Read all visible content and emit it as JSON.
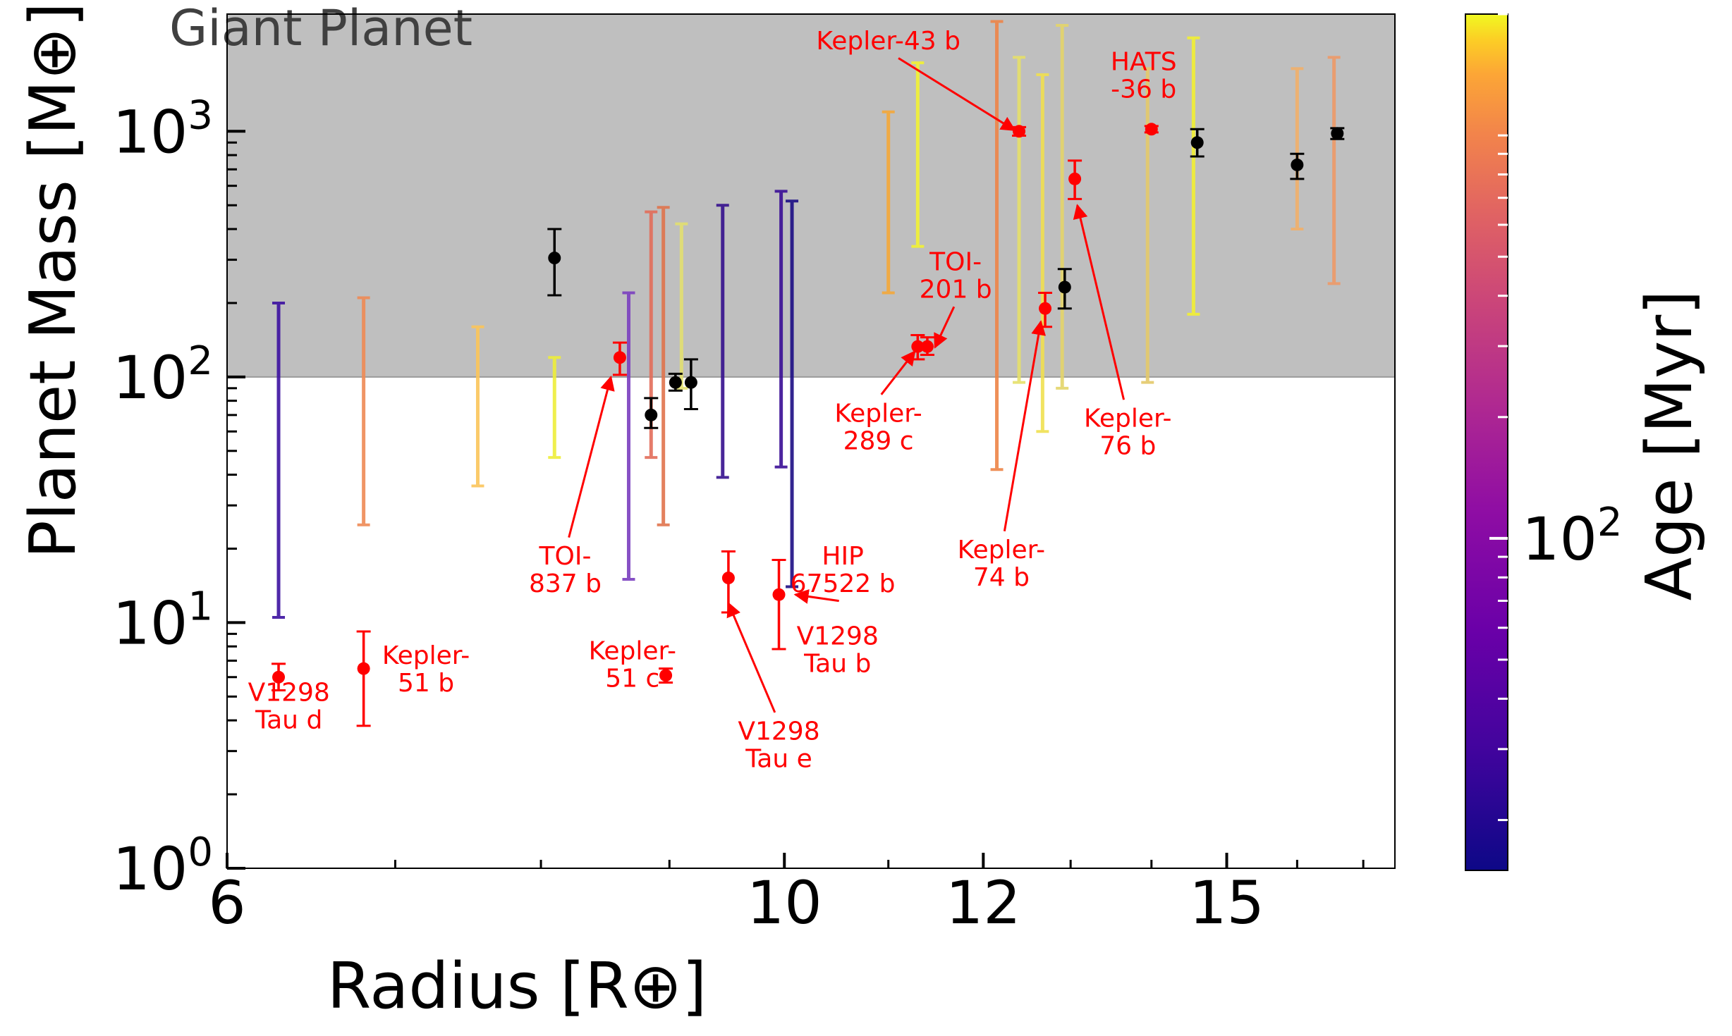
{
  "chart_data": {
    "type": "scatter",
    "xlabel": "Radius [R⊕]",
    "ylabel": "Planet Mass [M⊕]",
    "x_scale": "log",
    "y_scale": "log",
    "xlim": [
      6,
      17.5
    ],
    "ylim": [
      1,
      3000
    ],
    "x_ticks": [
      {
        "value": 6,
        "label": "6"
      },
      {
        "value": 10,
        "label": "10"
      },
      {
        "value": 12,
        "label": "12"
      },
      {
        "value": 15,
        "label": "15"
      }
    ],
    "x_minor_ticks": [
      7,
      8,
      9,
      11,
      13,
      14,
      16,
      17
    ],
    "y_ticks": [
      {
        "value": 1,
        "base": "10",
        "exp": "0"
      },
      {
        "value": 10,
        "base": "10",
        "exp": "1"
      },
      {
        "value": 100,
        "base": "10",
        "exp": "2"
      },
      {
        "value": 1000,
        "base": "10",
        "exp": "3"
      }
    ],
    "region": {
      "label": "Giant Planet",
      "y_min": 100,
      "color": "#bfbfbf"
    },
    "colorbar": {
      "label": "Age [Myr]",
      "scale": "log",
      "range": [
        15,
        2000
      ],
      "tick": {
        "value": 100,
        "base": "10",
        "exp": "2"
      },
      "minor_ticks": [
        20,
        30,
        40,
        50,
        60,
        70,
        80,
        90,
        200,
        300,
        400,
        500,
        600,
        700,
        800,
        900,
        1000,
        2000
      ]
    },
    "grid": false,
    "upper_limit_series": [
      {
        "x": 6.29,
        "y_low": 10.5,
        "y_high": 200,
        "color": "#3d11a0"
      },
      {
        "x": 6.8,
        "y_low": 25,
        "y_high": 210,
        "color": "#ef8a55"
      },
      {
        "x": 7.55,
        "y_low": 36,
        "y_high": 160,
        "color": "#fbc55a"
      },
      {
        "x": 8.1,
        "y_low": 47,
        "y_high": 120,
        "color": "#eeee3a"
      },
      {
        "x": 8.67,
        "y_low": 15,
        "y_high": 220,
        "color": "#7b3fbf"
      },
      {
        "x": 8.85,
        "y_low": 47,
        "y_high": 470,
        "color": "#e36d5a"
      },
      {
        "x": 8.95,
        "y_low": 25,
        "y_high": 490,
        "color": "#e0744d"
      },
      {
        "x": 9.1,
        "y_low": 90,
        "y_high": 420,
        "color": "#e3e070"
      },
      {
        "x": 9.45,
        "y_low": 39,
        "y_high": 500,
        "color": "#36108e"
      },
      {
        "x": 9.97,
        "y_low": 43,
        "y_high": 570,
        "color": "#3a0e96"
      },
      {
        "x": 10.07,
        "y_low": 14,
        "y_high": 520,
        "color": "#1c0d85"
      },
      {
        "x": 11.0,
        "y_low": 220,
        "y_high": 1200,
        "color": "#f5a83a"
      },
      {
        "x": 11.3,
        "y_low": 340,
        "y_high": 1900,
        "color": "#f2f233"
      },
      {
        "x": 12.15,
        "y_low": 42,
        "y_high": 2800,
        "color": "#ee8548"
      },
      {
        "x": 12.4,
        "y_low": 95,
        "y_high": 2000,
        "color": "#e6e06a"
      },
      {
        "x": 12.67,
        "y_low": 60,
        "y_high": 1700,
        "color": "#f0e050"
      },
      {
        "x": 12.9,
        "y_low": 90,
        "y_high": 2700,
        "color": "#e4d56a"
      },
      {
        "x": 13.95,
        "y_low": 95,
        "y_high": 1800,
        "color": "#e4c96a"
      },
      {
        "x": 14.55,
        "y_low": 180,
        "y_high": 2400,
        "color": "#f2f033"
      },
      {
        "x": 16.0,
        "y_low": 400,
        "y_high": 1800,
        "color": "#f1b06a"
      },
      {
        "x": 16.55,
        "y_low": 240,
        "y_high": 2000,
        "color": "#ee9a68"
      }
    ],
    "black_series": [
      {
        "x": 8.1,
        "y": 305,
        "y_low": 215,
        "y_high": 400
      },
      {
        "x": 8.85,
        "y": 70,
        "y_low": 62,
        "y_high": 82
      },
      {
        "x": 9.05,
        "y": 95,
        "y_low": 88,
        "y_high": 103
      },
      {
        "x": 9.18,
        "y": 95,
        "y_low": 74,
        "y_high": 118
      },
      {
        "x": 12.93,
        "y": 232,
        "y_low": 190,
        "y_high": 275
      },
      {
        "x": 14.6,
        "y": 900,
        "y_low": 790,
        "y_high": 1020
      },
      {
        "x": 16.0,
        "y": 730,
        "y_low": 640,
        "y_high": 810
      },
      {
        "x": 16.6,
        "y": 980,
        "y_low": 930,
        "y_high": 1030
      }
    ],
    "red_series": [
      {
        "name": "V1298 Tau d",
        "x": 6.29,
        "y": 6.0,
        "y_low": 5.3,
        "y_high": 6.8
      },
      {
        "name": "Kepler-51 b",
        "x": 6.8,
        "y": 6.5,
        "y_low": 3.8,
        "y_high": 9.2
      },
      {
        "name": "TOI-837 b",
        "x": 8.6,
        "y": 120,
        "y_low": 102,
        "y_high": 138
      },
      {
        "name": "Kepler-51 c",
        "x": 8.97,
        "y": 6.1,
        "y_low": 5.7,
        "y_high": 6.5
      },
      {
        "name": "V1298 Tau e",
        "x": 9.5,
        "y": 15.2,
        "y_low": 11.0,
        "y_high": 19.5
      },
      {
        "name": "V1298 Tau b",
        "x": 9.95,
        "y": 13.0,
        "y_low": 7.8,
        "y_high": 18.0
      },
      {
        "name": "Kepler-289 c",
        "x": 11.3,
        "y": 133,
        "y_low": 118,
        "y_high": 148
      },
      {
        "name": "TOI-201 b",
        "x": 11.4,
        "y": 133,
        "y_low": 123,
        "y_high": 145
      },
      {
        "name": "Kepler-43 b",
        "x": 12.4,
        "y": 1000,
        "y_low": 960,
        "y_high": 1040
      },
      {
        "name": "Kepler-74 b",
        "x": 12.7,
        "y": 190,
        "y_low": 160,
        "y_high": 220
      },
      {
        "name": "Kepler-76 b",
        "x": 13.05,
        "y": 640,
        "y_low": 530,
        "y_high": 760
      },
      {
        "name": "HATS-36 b",
        "x": 14.0,
        "y": 1020,
        "y_low": 990,
        "y_high": 1050
      }
    ],
    "annotations": [
      {
        "label_lines": [
          "V1298",
          "Tau d"
        ],
        "tx": 6.35,
        "ty": 4.6,
        "arrow": false
      },
      {
        "label_lines": [
          "Kepler-",
          "51 b"
        ],
        "tx": 7.2,
        "ty": 6.5,
        "arrow": false
      },
      {
        "label_lines": [
          "TOI-",
          "837 b"
        ],
        "tx": 8.18,
        "ty": 16.5,
        "arrow": true,
        "ax": 8.53,
        "ay": 100
      },
      {
        "label_lines": [
          "Kepler-",
          "51 c"
        ],
        "tx": 8.7,
        "ty": 6.8,
        "arrow": false
      },
      {
        "label_lines": [
          "V1298",
          "Tau e"
        ],
        "tx": 9.95,
        "ty": 3.2,
        "arrow": true,
        "ax": 9.5,
        "ay": 12
      },
      {
        "label_lines": [
          "HIP",
          "67522 b"
        ],
        "tx": 10.55,
        "ty": 16.5,
        "arrow": true,
        "ax": 10.1,
        "ay": 13
      },
      {
        "label_lines": [
          "V1298",
          "Tau b"
        ],
        "tx": 10.5,
        "ty": 7.8,
        "arrow": false
      },
      {
        "label_lines": [
          "Kepler-",
          "289 c"
        ],
        "tx": 10.9,
        "ty": 63,
        "arrow": true,
        "ax": 11.27,
        "ay": 127
      },
      {
        "label_lines": [
          "TOI-",
          "201 b"
        ],
        "tx": 11.7,
        "ty": 260,
        "arrow": true,
        "ax": 11.48,
        "ay": 132
      },
      {
        "label_lines": [
          "Kepler-43 b"
        ],
        "tx": 11.0,
        "ty": 2350,
        "arrow": true,
        "ax": 12.35,
        "ay": 1010
      },
      {
        "label_lines": [
          "Kepler-",
          "74 b"
        ],
        "tx": 12.2,
        "ty": 17.5,
        "arrow": true,
        "ax": 12.65,
        "ay": 168
      },
      {
        "label_lines": [
          "Kepler-",
          "76 b"
        ],
        "tx": 13.7,
        "ty": 60,
        "arrow": true,
        "ax": 13.08,
        "ay": 500
      },
      {
        "label_lines": [
          "HATS",
          "-36 b"
        ],
        "tx": 13.9,
        "ty": 1700,
        "arrow": false
      }
    ]
  }
}
